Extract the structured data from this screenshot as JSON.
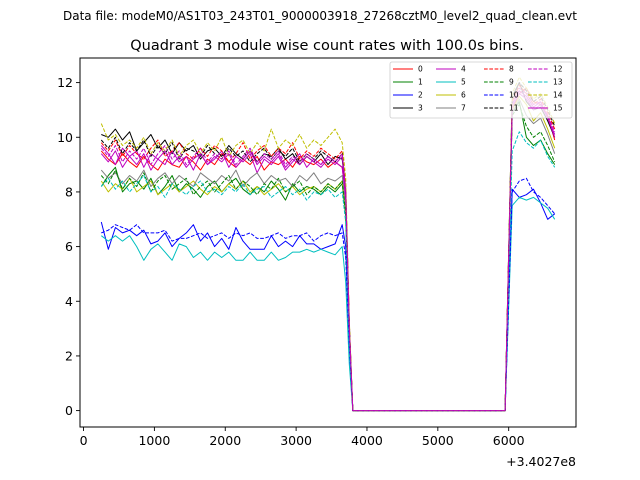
{
  "chart_data": {
    "type": "line",
    "suptitle": "Data file: modeM0/AS1T03_243T01_9000003918_27268cztM0_level2_quad_clean.evt",
    "title": "Quadrant 3 module wise count rates with 100.0s bins.",
    "xlabel": "",
    "ylabel": "",
    "x_offset_label": "+3.4027e8",
    "xlim": [
      -50,
      6950
    ],
    "ylim": [
      -0.6,
      12.9
    ],
    "xticks": [
      0,
      1000,
      2000,
      3000,
      4000,
      5000,
      6000
    ],
    "xtick_labels": [
      "0",
      "1000",
      "2000",
      "3000",
      "4000",
      "5000",
      "6000"
    ],
    "yticks": [
      0,
      2,
      4,
      6,
      8,
      10,
      12
    ],
    "ytick_labels": [
      "0",
      "2",
      "4",
      "6",
      "8",
      "10",
      "12"
    ],
    "grid": false,
    "legend_position": "top-right",
    "x": [
      250,
      350,
      450,
      550,
      650,
      750,
      850,
      950,
      1050,
      1150,
      1250,
      1350,
      1450,
      1550,
      1650,
      1750,
      1850,
      1950,
      2050,
      2150,
      2250,
      2350,
      2450,
      2550,
      2650,
      2750,
      2850,
      2950,
      3050,
      3150,
      3250,
      3350,
      3450,
      3550,
      3650,
      3700,
      3750,
      3800,
      3850,
      3950,
      4050,
      4150,
      4250,
      4350,
      4450,
      4550,
      4650,
      4750,
      4850,
      4950,
      5050,
      5150,
      5250,
      5350,
      5450,
      5550,
      5650,
      5750,
      5850,
      5950,
      6050,
      6150,
      6250,
      6350,
      6450,
      6550,
      6650
    ],
    "series": [
      {
        "name": "0",
        "color": "#ff0000",
        "dash": "solid",
        "values": [
          9.5,
          9.2,
          9.0,
          9.4,
          9.1,
          8.9,
          9.3,
          9.0,
          8.8,
          9.2,
          9.0,
          8.9,
          9.3,
          9.1,
          8.8,
          9.2,
          9.0,
          9.4,
          9.1,
          8.9,
          9.2,
          9.0,
          9.3,
          8.8,
          9.1,
          9.0,
          9.2,
          8.9,
          9.3,
          9.1,
          9.0,
          9.2,
          8.9,
          9.1,
          8.9,
          7.8,
          3.0,
          0.0,
          0.0,
          0.0,
          0.0,
          0.0,
          0.0,
          0.0,
          0.0,
          0.0,
          0.0,
          0.0,
          0.0,
          0.0,
          0.0,
          0.0,
          0.0,
          0.0,
          0.0,
          0.0,
          0.0,
          0.0,
          0.0,
          0.0,
          11.0,
          11.6,
          11.8,
          11.3,
          11.2,
          10.8,
          9.9
        ]
      },
      {
        "name": "1",
        "color": "#008000",
        "dash": "solid",
        "values": [
          8.2,
          8.6,
          8.9,
          8.0,
          8.3,
          8.4,
          8.1,
          8.5,
          7.9,
          8.2,
          8.6,
          8.0,
          8.3,
          8.1,
          7.8,
          8.2,
          8.4,
          8.0,
          8.3,
          8.5,
          8.1,
          7.9,
          8.2,
          8.0,
          8.4,
          8.1,
          7.7,
          8.3,
          8.0,
          8.2,
          8.1,
          7.9,
          8.2,
          8.0,
          8.3,
          7.1,
          2.8,
          0.0,
          0.0,
          0.0,
          0.0,
          0.0,
          0.0,
          0.0,
          0.0,
          0.0,
          0.0,
          0.0,
          0.0,
          0.0,
          0.0,
          0.0,
          0.0,
          0.0,
          0.0,
          0.0,
          0.0,
          0.0,
          0.0,
          0.0,
          10.9,
          11.3,
          10.0,
          9.7,
          9.9,
          9.4,
          9.0
        ]
      },
      {
        "name": "2",
        "color": "#0000ff",
        "dash": "solid",
        "values": [
          6.9,
          5.9,
          6.7,
          6.5,
          6.6,
          6.4,
          6.6,
          6.1,
          6.2,
          6.5,
          6.0,
          6.3,
          6.5,
          6.8,
          6.2,
          6.5,
          6.0,
          6.3,
          5.9,
          6.7,
          6.2,
          5.9,
          5.9,
          5.9,
          6.4,
          6.0,
          6.2,
          6.0,
          6.4,
          6.1,
          6.1,
          5.9,
          6.0,
          6.1,
          6.8,
          6.0,
          2.4,
          0.0,
          0.0,
          0.0,
          0.0,
          0.0,
          0.0,
          0.0,
          0.0,
          0.0,
          0.0,
          0.0,
          0.0,
          0.0,
          0.0,
          0.0,
          0.0,
          0.0,
          0.0,
          0.0,
          0.0,
          0.0,
          0.0,
          0.0,
          8.1,
          7.8,
          7.9,
          8.1,
          7.6,
          7.0,
          7.2
        ]
      },
      {
        "name": "3",
        "color": "#000000",
        "dash": "solid",
        "values": [
          10.1,
          10.0,
          10.3,
          9.9,
          10.2,
          9.5,
          9.8,
          10.1,
          9.6,
          9.9,
          9.4,
          9.8,
          9.5,
          9.7,
          9.2,
          9.5,
          9.6,
          9.3,
          9.7,
          9.4,
          9.2,
          9.5,
          9.1,
          9.4,
          9.3,
          9.6,
          9.2,
          9.4,
          9.0,
          9.3,
          9.1,
          9.4,
          9.0,
          9.3,
          9.2,
          8.0,
          3.2,
          0.0,
          0.0,
          0.0,
          0.0,
          0.0,
          0.0,
          0.0,
          0.0,
          0.0,
          0.0,
          0.0,
          0.0,
          0.0,
          0.0,
          0.0,
          0.0,
          0.0,
          0.0,
          0.0,
          0.0,
          0.0,
          0.0,
          0.0,
          11.5,
          12.0,
          11.3,
          11.0,
          11.1,
          10.6,
          10.0
        ]
      },
      {
        "name": "4",
        "color": "#bf00bf",
        "dash": "solid",
        "values": [
          9.7,
          9.4,
          9.0,
          9.6,
          9.3,
          9.5,
          8.9,
          9.4,
          9.2,
          9.0,
          9.5,
          9.1,
          9.3,
          8.8,
          9.4,
          9.0,
          9.2,
          9.5,
          8.9,
          9.3,
          9.1,
          9.4,
          8.7,
          9.2,
          9.0,
          9.3,
          8.8,
          9.1,
          9.4,
          8.9,
          9.2,
          9.0,
          9.3,
          9.1,
          8.9,
          7.7,
          3.0,
          0.0,
          0.0,
          0.0,
          0.0,
          0.0,
          0.0,
          0.0,
          0.0,
          0.0,
          0.0,
          0.0,
          0.0,
          0.0,
          0.0,
          0.0,
          0.0,
          0.0,
          0.0,
          0.0,
          0.0,
          0.0,
          0.0,
          0.0,
          11.2,
          11.7,
          11.5,
          11.1,
          11.3,
          10.7,
          10.1
        ]
      },
      {
        "name": "5",
        "color": "#00bfbf",
        "dash": "solid",
        "values": [
          6.4,
          6.2,
          6.4,
          6.2,
          6.4,
          6.0,
          5.5,
          5.9,
          6.1,
          5.8,
          5.5,
          6.1,
          6.0,
          5.6,
          5.8,
          5.5,
          5.8,
          5.6,
          5.8,
          5.5,
          5.5,
          5.8,
          5.5,
          5.5,
          5.8,
          5.5,
          5.6,
          5.8,
          5.8,
          5.9,
          5.8,
          5.9,
          5.8,
          5.7,
          6.0,
          4.7,
          1.7,
          0.0,
          0.0,
          0.0,
          0.0,
          0.0,
          0.0,
          0.0,
          0.0,
          0.0,
          0.0,
          0.0,
          0.0,
          0.0,
          0.0,
          0.0,
          0.0,
          0.0,
          0.0,
          0.0,
          0.0,
          0.0,
          0.0,
          0.0,
          7.5,
          7.8,
          7.7,
          7.8,
          7.6,
          7.4,
          7.0
        ]
      },
      {
        "name": "6",
        "color": "#bfbf00",
        "dash": "solid",
        "values": [
          8.4,
          8.0,
          8.3,
          8.1,
          8.5,
          8.0,
          8.2,
          8.4,
          7.9,
          8.1,
          8.3,
          8.0,
          8.2,
          8.4,
          8.1,
          7.9,
          8.2,
          8.0,
          8.3,
          8.1,
          8.4,
          8.0,
          8.2,
          7.9,
          8.1,
          8.3,
          8.0,
          8.2,
          7.9,
          8.1,
          8.2,
          8.0,
          8.3,
          8.1,
          8.4,
          7.2,
          2.8,
          0.0,
          0.0,
          0.0,
          0.0,
          0.0,
          0.0,
          0.0,
          0.0,
          0.0,
          0.0,
          0.0,
          0.0,
          0.0,
          0.0,
          0.0,
          0.0,
          0.0,
          0.0,
          0.0,
          0.0,
          0.0,
          0.0,
          0.0,
          11.0,
          11.5,
          11.2,
          10.6,
          10.9,
          10.3,
          9.6
        ]
      },
      {
        "name": "7",
        "color": "#808080",
        "dash": "solid",
        "values": [
          8.8,
          8.5,
          8.7,
          8.3,
          8.6,
          8.4,
          8.8,
          8.2,
          8.5,
          8.7,
          8.3,
          8.6,
          8.4,
          8.2,
          8.7,
          8.5,
          8.3,
          8.6,
          8.4,
          8.8,
          8.2,
          8.5,
          8.7,
          8.3,
          8.6,
          8.4,
          8.5,
          8.2,
          8.6,
          8.4,
          8.7,
          8.3,
          8.5,
          8.4,
          8.6,
          7.4,
          2.9,
          0.0,
          0.0,
          0.0,
          0.0,
          0.0,
          0.0,
          0.0,
          0.0,
          0.0,
          0.0,
          0.0,
          0.0,
          0.0,
          0.0,
          0.0,
          0.0,
          0.0,
          0.0,
          0.0,
          0.0,
          0.0,
          0.0,
          0.0,
          10.9,
          11.4,
          10.8,
          10.5,
          10.7,
          10.1,
          9.4
        ]
      },
      {
        "name": "8",
        "color": "#ff0000",
        "dash": "dashed",
        "values": [
          9.8,
          9.5,
          9.9,
          9.3,
          9.7,
          9.4,
          9.2,
          9.6,
          9.9,
          9.3,
          9.5,
          9.8,
          9.4,
          9.2,
          9.6,
          9.3,
          9.7,
          9.5,
          9.1,
          9.4,
          9.8,
          9.2,
          9.5,
          9.7,
          9.3,
          9.6,
          9.4,
          9.8,
          9.2,
          9.5,
          9.3,
          9.6,
          9.4,
          9.2,
          9.5,
          8.2,
          3.2,
          0.0,
          0.0,
          0.0,
          0.0,
          0.0,
          0.0,
          0.0,
          0.0,
          0.0,
          0.0,
          0.0,
          0.0,
          0.0,
          0.0,
          0.0,
          0.0,
          0.0,
          0.0,
          0.0,
          0.0,
          0.0,
          0.0,
          0.0,
          11.3,
          11.9,
          11.6,
          11.2,
          11.4,
          10.9,
          10.3
        ]
      },
      {
        "name": "9",
        "color": "#008000",
        "dash": "dashed",
        "values": [
          8.6,
          8.3,
          8.8,
          8.1,
          8.5,
          8.2,
          8.7,
          8.0,
          8.4,
          8.6,
          8.1,
          8.3,
          8.5,
          7.9,
          8.2,
          8.4,
          8.0,
          8.3,
          8.6,
          8.1,
          8.4,
          8.2,
          7.9,
          8.3,
          8.1,
          8.5,
          8.0,
          8.2,
          8.4,
          7.9,
          8.2,
          8.0,
          8.3,
          8.1,
          8.4,
          7.2,
          2.8,
          0.0,
          0.0,
          0.0,
          0.0,
          0.0,
          0.0,
          0.0,
          0.0,
          0.0,
          0.0,
          0.0,
          0.0,
          0.0,
          0.0,
          0.0,
          0.0,
          0.0,
          0.0,
          0.0,
          0.0,
          0.0,
          0.0,
          0.0,
          10.8,
          11.2,
          10.4,
          10.0,
          10.2,
          9.7,
          9.1
        ]
      },
      {
        "name": "10",
        "color": "#0000ff",
        "dash": "dashed",
        "values": [
          6.5,
          6.6,
          6.8,
          6.7,
          6.6,
          6.8,
          6.5,
          6.5,
          6.5,
          6.6,
          6.2,
          6.3,
          6.3,
          6.4,
          6.5,
          6.3,
          6.4,
          6.5,
          6.3,
          6.5,
          6.4,
          6.5,
          6.3,
          6.3,
          6.4,
          6.5,
          6.3,
          6.4,
          6.4,
          6.5,
          6.2,
          6.4,
          6.5,
          6.4,
          6.5,
          5.6,
          2.4,
          0.0,
          0.0,
          0.0,
          0.0,
          0.0,
          0.0,
          0.0,
          0.0,
          0.0,
          0.0,
          0.0,
          0.0,
          0.0,
          0.0,
          0.0,
          0.0,
          0.0,
          0.0,
          0.0,
          0.0,
          0.0,
          0.0,
          0.0,
          8.0,
          8.4,
          8.5,
          8.0,
          7.8,
          7.5,
          7.2
        ]
      },
      {
        "name": "11",
        "color": "#000000",
        "dash": "dashed",
        "values": [
          9.9,
          9.6,
          10.0,
          9.4,
          9.8,
          9.5,
          9.9,
          9.3,
          9.7,
          9.4,
          9.8,
          9.2,
          9.6,
          9.5,
          9.3,
          9.7,
          9.4,
          9.2,
          9.6,
          9.3,
          9.5,
          9.1,
          9.4,
          9.6,
          9.2,
          9.5,
          9.3,
          9.6,
          9.1,
          9.4,
          9.2,
          9.5,
          9.3,
          9.1,
          9.4,
          8.1,
          3.1,
          0.0,
          0.0,
          0.0,
          0.0,
          0.0,
          0.0,
          0.0,
          0.0,
          0.0,
          0.0,
          0.0,
          0.0,
          0.0,
          0.0,
          0.0,
          0.0,
          0.0,
          0.0,
          0.0,
          0.0,
          0.0,
          0.0,
          0.0,
          11.4,
          12.0,
          11.7,
          11.3,
          11.5,
          11.0,
          10.4
        ]
      },
      {
        "name": "12",
        "color": "#bf00bf",
        "dash": "dashed",
        "values": [
          9.6,
          9.3,
          9.7,
          9.1,
          9.5,
          9.2,
          9.6,
          9.0,
          9.4,
          9.7,
          9.2,
          9.5,
          9.0,
          9.3,
          9.6,
          9.1,
          9.4,
          9.2,
          9.5,
          9.0,
          9.3,
          9.6,
          9.1,
          9.4,
          9.2,
          9.5,
          9.0,
          9.3,
          9.1,
          9.4,
          9.2,
          9.0,
          9.3,
          9.1,
          9.4,
          8.1,
          3.1,
          0.0,
          0.0,
          0.0,
          0.0,
          0.0,
          0.0,
          0.0,
          0.0,
          0.0,
          0.0,
          0.0,
          0.0,
          0.0,
          0.0,
          0.0,
          0.0,
          0.0,
          0.0,
          0.0,
          0.0,
          0.0,
          0.0,
          0.0,
          11.2,
          11.8,
          11.6,
          11.2,
          11.3,
          10.8,
          10.2
        ]
      },
      {
        "name": "13",
        "color": "#00bfbf",
        "dash": "dashed",
        "values": [
          8.2,
          8.5,
          8.1,
          8.4,
          8.0,
          8.3,
          8.6,
          8.0,
          8.2,
          7.8,
          8.3,
          8.1,
          7.9,
          8.2,
          8.4,
          8.0,
          8.1,
          7.9,
          8.2,
          8.0,
          8.3,
          7.9,
          8.1,
          8.2,
          7.8,
          8.0,
          8.2,
          7.9,
          8.1,
          7.7,
          8.0,
          7.9,
          8.1,
          7.8,
          8.0,
          6.9,
          2.6,
          0.0,
          0.0,
          0.0,
          0.0,
          0.0,
          0.0,
          0.0,
          0.0,
          0.0,
          0.0,
          0.0,
          0.0,
          0.0,
          0.0,
          0.0,
          0.0,
          0.0,
          0.0,
          0.0,
          0.0,
          0.0,
          0.0,
          0.0,
          9.5,
          10.2,
          9.8,
          9.6,
          9.9,
          9.3,
          8.9
        ]
      },
      {
        "name": "14",
        "color": "#bfbf00",
        "dash": "dashed",
        "values": [
          10.5,
          9.9,
          10.1,
          9.7,
          9.9,
          9.6,
          10.0,
          9.4,
          9.8,
          9.5,
          9.9,
          9.3,
          9.7,
          9.9,
          9.4,
          9.8,
          9.5,
          10.0,
          9.3,
          9.7,
          9.9,
          9.4,
          9.8,
          9.5,
          10.3,
          9.6,
          9.9,
          9.7,
          10.1,
          9.6,
          9.9,
          9.7,
          10.0,
          10.3,
          9.8,
          8.5,
          3.3,
          0.0,
          0.0,
          0.0,
          0.0,
          0.0,
          0.0,
          0.0,
          0.0,
          0.0,
          0.0,
          0.0,
          0.0,
          0.0,
          0.0,
          0.0,
          0.0,
          0.0,
          0.0,
          0.0,
          0.0,
          0.0,
          0.0,
          0.0,
          11.6,
          12.2,
          11.8,
          11.4,
          11.6,
          11.1,
          10.5
        ]
      },
      {
        "name": "15",
        "color": "#bf00bf",
        "dash": "solid",
        "values": [
          9.4,
          9.1,
          9.5,
          8.9,
          9.3,
          9.0,
          9.4,
          8.8,
          9.2,
          9.5,
          9.0,
          9.3,
          8.9,
          9.2,
          9.4,
          9.0,
          9.3,
          9.1,
          9.4,
          8.9,
          9.2,
          9.5,
          9.0,
          9.3,
          9.1,
          9.4,
          8.9,
          9.2,
          9.0,
          9.3,
          9.1,
          8.9,
          9.2,
          9.0,
          9.3,
          8.0,
          3.0,
          0.0,
          0.0,
          0.0,
          0.0,
          0.0,
          0.0,
          0.0,
          0.0,
          0.0,
          0.0,
          0.0,
          0.0,
          0.0,
          0.0,
          0.0,
          0.0,
          0.0,
          0.0,
          0.0,
          0.0,
          0.0,
          0.0,
          0.0,
          11.1,
          11.6,
          11.4,
          11.0,
          11.2,
          10.7,
          10.0
        ]
      }
    ]
  }
}
